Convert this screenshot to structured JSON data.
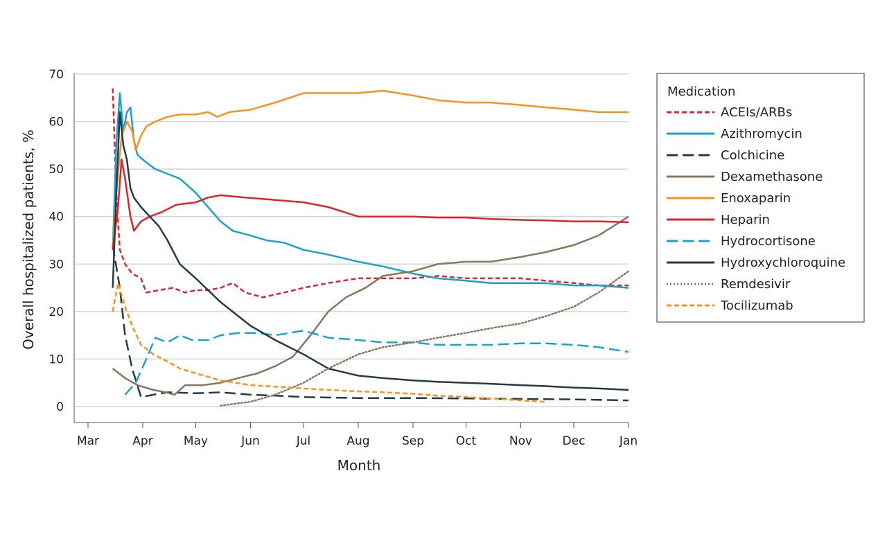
{
  "chart_data": {
    "type": "line",
    "xlabel": "Month",
    "ylabel": "Overall hospitalized patients, %",
    "xlim": [
      "Mar",
      "Jan"
    ],
    "ylim": [
      0,
      70
    ],
    "x_tick_labels": [
      "Mar",
      "Apr",
      "May",
      "Jun",
      "Jul",
      "Aug",
      "Sep",
      "Oct",
      "Nov",
      "Dec",
      "Jan"
    ],
    "y_ticks": [
      0,
      10,
      20,
      30,
      40,
      50,
      60,
      70
    ],
    "grid": "horizontal",
    "legend": {
      "title": "Medication",
      "placement": "right"
    },
    "series": [
      {
        "name": "ACEIs/ARBs",
        "color": "#d7262f",
        "style": "short-dash",
        "points": [
          [
            "Mar 15",
            67
          ],
          [
            "Mar 17",
            45
          ],
          [
            "Mar 19",
            33
          ],
          [
            "Mar 22",
            30
          ],
          [
            "Mar 26",
            28
          ],
          [
            "Mar 31",
            27
          ],
          [
            "Apr 3",
            24
          ],
          [
            "Apr 10",
            24.5
          ],
          [
            "Apr 18",
            25
          ],
          [
            "Apr 25",
            24
          ],
          [
            "May 1",
            24.5
          ],
          [
            "May 8",
            24.5
          ],
          [
            "May 15",
            25
          ],
          [
            "May 22",
            26
          ],
          [
            "May 29",
            24
          ],
          [
            "Jun 8",
            23
          ],
          [
            "Jun 20",
            24
          ],
          [
            "Jul 1",
            25
          ],
          [
            "Jul 15",
            26
          ],
          [
            "Aug 1",
            27
          ],
          [
            "Aug 15",
            27
          ],
          [
            "Sep 1",
            27
          ],
          [
            "Sep 15",
            27.5
          ],
          [
            "Oct 1",
            27
          ],
          [
            "Oct 15",
            27
          ],
          [
            "Nov 1",
            27
          ],
          [
            "Nov 15",
            26.5
          ],
          [
            "Dec 1",
            26
          ],
          [
            "Dec 15",
            25.5
          ],
          [
            "Jan 1",
            25.5
          ]
        ]
      },
      {
        "name": "Azithromycin",
        "color": "#1ba2cc",
        "style": "solid",
        "points": [
          [
            "Mar 15",
            33
          ],
          [
            "Mar 17",
            55
          ],
          [
            "Mar 19",
            66
          ],
          [
            "Mar 21",
            58
          ],
          [
            "Mar 23",
            62
          ],
          [
            "Mar 25",
            63
          ],
          [
            "Mar 27",
            56
          ],
          [
            "Mar 29",
            53
          ],
          [
            "Apr 1",
            52
          ],
          [
            "Apr 8",
            50
          ],
          [
            "Apr 15",
            49
          ],
          [
            "Apr 22",
            48
          ],
          [
            "May 1",
            45
          ],
          [
            "May 8",
            42
          ],
          [
            "May 15",
            39
          ],
          [
            "May 22",
            37
          ],
          [
            "Jun 1",
            36
          ],
          [
            "Jun 10",
            35
          ],
          [
            "Jun 20",
            34.5
          ],
          [
            "Jul 1",
            33
          ],
          [
            "Jul 15",
            32
          ],
          [
            "Aug 1",
            30.5
          ],
          [
            "Aug 15",
            29.5
          ],
          [
            "Sep 1",
            28
          ],
          [
            "Sep 15",
            27
          ],
          [
            "Oct 1",
            26.5
          ],
          [
            "Oct 15",
            26
          ],
          [
            "Nov 1",
            26
          ],
          [
            "Nov 15",
            26
          ],
          [
            "Dec 1",
            25.5
          ],
          [
            "Dec 15",
            25.5
          ],
          [
            "Jan 1",
            25
          ]
        ]
      },
      {
        "name": "Colchicine",
        "color": "#243a47",
        "style": "long-dash",
        "points": [
          [
            "Mar 15",
            34
          ],
          [
            "Mar 19",
            25
          ],
          [
            "Mar 22",
            15
          ],
          [
            "Mar 26",
            8
          ],
          [
            "Mar 31",
            2
          ],
          [
            "Apr 7",
            2.5
          ],
          [
            "Apr 15",
            3
          ],
          [
            "May 1",
            2.8
          ],
          [
            "May 15",
            3
          ],
          [
            "Jun 1",
            2.5
          ],
          [
            "Jun 15",
            2.3
          ],
          [
            "Jul 1",
            2
          ],
          [
            "Aug 1",
            1.8
          ],
          [
            "Sep 1",
            1.8
          ],
          [
            "Oct 1",
            1.7
          ],
          [
            "Nov 1",
            1.6
          ],
          [
            "Dec 1",
            1.5
          ],
          [
            "Jan 1",
            1.3
          ]
        ]
      },
      {
        "name": "Dexamethasone",
        "color": "#8a7560",
        "style": "solid",
        "points": [
          [
            "Mar 15",
            8
          ],
          [
            "Mar 22",
            6
          ],
          [
            "Mar 29",
            4.5
          ],
          [
            "Apr 7",
            3.5
          ],
          [
            "Apr 14",
            3
          ],
          [
            "Apr 19",
            2.5
          ],
          [
            "Apr 25",
            4.5
          ],
          [
            "May 5",
            4.5
          ],
          [
            "May 15",
            5
          ],
          [
            "May 25",
            6
          ],
          [
            "Jun 5",
            7
          ],
          [
            "Jun 15",
            8.5
          ],
          [
            "Jun 25",
            10.5
          ],
          [
            "Jul 5",
            15
          ],
          [
            "Jul 15",
            20
          ],
          [
            "Jul 25",
            23
          ],
          [
            "Aug 5",
            25
          ],
          [
            "Aug 15",
            27.5
          ],
          [
            "Sep 1",
            28.5
          ],
          [
            "Sep 15",
            30
          ],
          [
            "Oct 1",
            30.5
          ],
          [
            "Oct 15",
            30.5
          ],
          [
            "Nov 1",
            31.5
          ],
          [
            "Nov 15",
            32.5
          ],
          [
            "Dec 1",
            34
          ],
          [
            "Dec 15",
            36
          ],
          [
            "Jan 1",
            40
          ]
        ]
      },
      {
        "name": "Enoxaparin",
        "color": "#f7921e",
        "style": "solid",
        "points": [
          [
            "Mar 15",
            33
          ],
          [
            "Mar 17",
            45
          ],
          [
            "Mar 20",
            57
          ],
          [
            "Mar 23",
            60
          ],
          [
            "Mar 26",
            58
          ],
          [
            "Mar 28",
            54
          ],
          [
            "Mar 31",
            57
          ],
          [
            "Apr 3",
            59
          ],
          [
            "Apr 8",
            60
          ],
          [
            "Apr 15",
            61
          ],
          [
            "Apr 22",
            61.5
          ],
          [
            "May 1",
            61.5
          ],
          [
            "May 8",
            62
          ],
          [
            "May 13",
            61
          ],
          [
            "May 20",
            62
          ],
          [
            "Jun 1",
            62.5
          ],
          [
            "Jun 15",
            64
          ],
          [
            "Jul 1",
            66
          ],
          [
            "Jul 15",
            66
          ],
          [
            "Aug 1",
            66
          ],
          [
            "Aug 15",
            66.5
          ],
          [
            "Sep 1",
            65.5
          ],
          [
            "Sep 15",
            64.5
          ],
          [
            "Oct 1",
            64
          ],
          [
            "Oct 15",
            64
          ],
          [
            "Nov 1",
            63.5
          ],
          [
            "Nov 15",
            63
          ],
          [
            "Dec 1",
            62.5
          ],
          [
            "Dec 15",
            62
          ],
          [
            "Jan 1",
            62
          ]
        ]
      },
      {
        "name": "Heparin",
        "color": "#d7262f",
        "style": "solid",
        "points": [
          [
            "Mar 15",
            33
          ],
          [
            "Mar 18",
            42
          ],
          [
            "Mar 20",
            52
          ],
          [
            "Mar 22",
            48
          ],
          [
            "Mar 25",
            40
          ],
          [
            "Mar 27",
            37
          ],
          [
            "Mar 31",
            39
          ],
          [
            "Apr 5",
            40
          ],
          [
            "Apr 12",
            41
          ],
          [
            "Apr 20",
            42.5
          ],
          [
            "May 1",
            43
          ],
          [
            "May 8",
            44
          ],
          [
            "May 15",
            44.5
          ],
          [
            "May 29",
            44
          ],
          [
            "Jun 15",
            43.5
          ],
          [
            "Jul 1",
            43
          ],
          [
            "Jul 15",
            42
          ],
          [
            "Aug 1",
            40
          ],
          [
            "Aug 15",
            40
          ],
          [
            "Sep 1",
            40
          ],
          [
            "Sep 15",
            39.8
          ],
          [
            "Oct 1",
            39.8
          ],
          [
            "Oct 15",
            39.5
          ],
          [
            "Nov 1",
            39.3
          ],
          [
            "Nov 15",
            39.2
          ],
          [
            "Dec 1",
            39
          ],
          [
            "Dec 15",
            39
          ],
          [
            "Jan 1",
            38.8
          ]
        ]
      },
      {
        "name": "Hydrocortisone",
        "color": "#1ba2cc",
        "style": "long-dash",
        "points": [
          [
            "Mar 22",
            2.5
          ],
          [
            "Mar 28",
            5
          ],
          [
            "Apr 3",
            10
          ],
          [
            "Apr 8",
            14.5
          ],
          [
            "Apr 15",
            13.5
          ],
          [
            "Apr 22",
            15
          ],
          [
            "Apr 29",
            14
          ],
          [
            "May 8",
            14
          ],
          [
            "May 15",
            15
          ],
          [
            "May 25",
            15.5
          ],
          [
            "Jun 5",
            15.5
          ],
          [
            "Jun 15",
            15
          ],
          [
            "Jul 1",
            16
          ],
          [
            "Jul 15",
            14.5
          ],
          [
            "Aug 1",
            14
          ],
          [
            "Aug 15",
            13.5
          ],
          [
            "Sep 1",
            13.5
          ],
          [
            "Sep 15",
            13
          ],
          [
            "Oct 1",
            13
          ],
          [
            "Oct 15",
            13
          ],
          [
            "Nov 1",
            13.3
          ],
          [
            "Nov 15",
            13.3
          ],
          [
            "Dec 1",
            13
          ],
          [
            "Dec 15",
            12.5
          ],
          [
            "Jan 1",
            11.5
          ]
        ]
      },
      {
        "name": "Hydroxychloroquine",
        "color": "#243a47",
        "style": "solid",
        "points": [
          [
            "Mar 15",
            25
          ],
          [
            "Mar 17",
            45
          ],
          [
            "Mar 19",
            62
          ],
          [
            "Mar 21",
            55
          ],
          [
            "Mar 23",
            52
          ],
          [
            "Mar 25",
            46
          ],
          [
            "Mar 27",
            44
          ],
          [
            "Mar 31",
            42
          ],
          [
            "Apr 5",
            40
          ],
          [
            "Apr 10",
            38
          ],
          [
            "Apr 15",
            35
          ],
          [
            "Apr 22",
            30
          ],
          [
            "May 1",
            27
          ],
          [
            "May 15",
            22
          ],
          [
            "Jun 1",
            17
          ],
          [
            "Jun 15",
            14
          ],
          [
            "Jul 1",
            11
          ],
          [
            "Jul 15",
            8
          ],
          [
            "Aug 1",
            6.5
          ],
          [
            "Aug 15",
            6
          ],
          [
            "Sep 1",
            5.5
          ],
          [
            "Sep 15",
            5.2
          ],
          [
            "Oct 1",
            5
          ],
          [
            "Oct 15",
            4.8
          ],
          [
            "Nov 1",
            4.5
          ],
          [
            "Nov 15",
            4.3
          ],
          [
            "Dec 1",
            4
          ],
          [
            "Dec 15",
            3.8
          ],
          [
            "Jan 1",
            3.5
          ]
        ]
      },
      {
        "name": "Remdesivir",
        "color": "#8a7560",
        "style": "dotted",
        "points": [
          [
            "May 15",
            0.2
          ],
          [
            "Jun 1",
            1
          ],
          [
            "Jun 15",
            2.5
          ],
          [
            "Jul 1",
            5
          ],
          [
            "Jul 15",
            8
          ],
          [
            "Aug 1",
            11
          ],
          [
            "Aug 15",
            12.5
          ],
          [
            "Sep 1",
            13.5
          ],
          [
            "Sep 15",
            14.5
          ],
          [
            "Oct 1",
            15.5
          ],
          [
            "Oct 15",
            16.5
          ],
          [
            "Nov 1",
            17.5
          ],
          [
            "Nov 15",
            19
          ],
          [
            "Dec 1",
            21
          ],
          [
            "Dec 15",
            24
          ],
          [
            "Jan 1",
            28.5
          ]
        ]
      },
      {
        "name": "Tocilizumab",
        "color": "#f7921e",
        "style": "short-dash",
        "points": [
          [
            "Mar 15",
            20
          ],
          [
            "Mar 18",
            26
          ],
          [
            "Mar 22",
            21
          ],
          [
            "Mar 26",
            17
          ],
          [
            "Mar 31",
            13
          ],
          [
            "Apr 7",
            11
          ],
          [
            "Apr 15",
            9.5
          ],
          [
            "Apr 22",
            8
          ],
          [
            "May 1",
            7
          ],
          [
            "May 15",
            5.5
          ],
          [
            "Jun 1",
            4.5
          ],
          [
            "Jun 15",
            4.2
          ],
          [
            "Jul 1",
            3.8
          ],
          [
            "Jul 15",
            3.5
          ],
          [
            "Aug 1",
            3.2
          ],
          [
            "Aug 15",
            3
          ],
          [
            "Sep 1",
            2.7
          ],
          [
            "Sep 15",
            2.3
          ],
          [
            "Oct 1",
            2
          ],
          [
            "Oct 15",
            1.7
          ],
          [
            "Nov 1",
            1.3
          ],
          [
            "Nov 15",
            1
          ]
        ]
      }
    ]
  }
}
